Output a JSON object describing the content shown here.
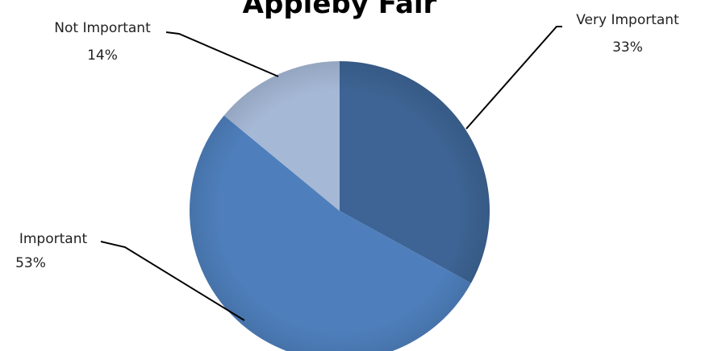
{
  "chart_data": {
    "type": "pie",
    "title": "Appleby Fair",
    "start_angle_deg": 0,
    "direction": "clockwise",
    "slices": [
      {
        "label": "Very Important",
        "value": 33,
        "display": "33%",
        "color": "#3D6494"
      },
      {
        "label": "Important",
        "value": 53,
        "display": "53%",
        "color": "#4E7FBC"
      },
      {
        "label": "Not Important",
        "value": 14,
        "display": "14%",
        "color": "#A5B8D6"
      }
    ],
    "legend": "none",
    "labels": "outside with leader lines"
  }
}
